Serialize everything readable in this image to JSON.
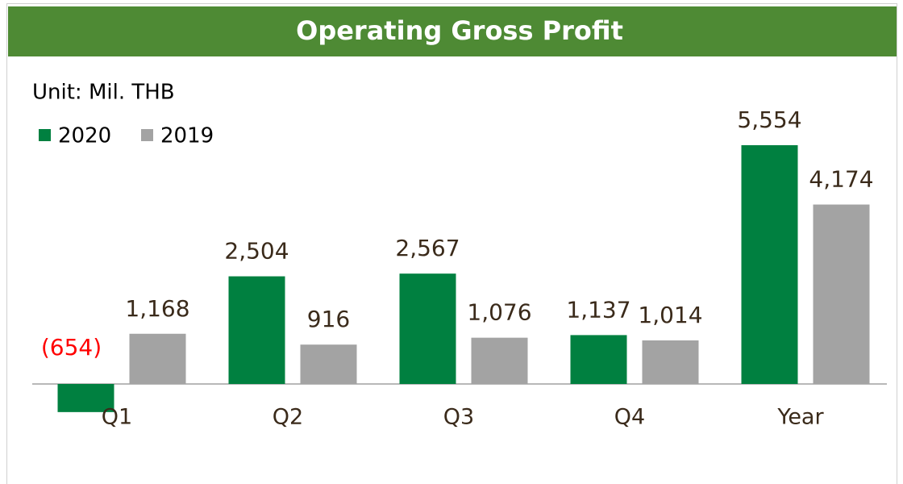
{
  "chart_data": {
    "type": "bar",
    "title": "Operating Gross Profit",
    "subtitle": "Unit: Mil. THB",
    "categories": [
      "Q1",
      "Q2",
      "Q3",
      "Q4",
      "Year"
    ],
    "series": [
      {
        "name": "2020",
        "color": "#008040",
        "values": [
          -654,
          2504,
          2567,
          1137,
          5554
        ],
        "value_labels": [
          "(654)",
          "2,504",
          "2,567",
          "1,137",
          "5,554"
        ]
      },
      {
        "name": "2019",
        "color": "#a3a3a3",
        "values": [
          1168,
          916,
          1076,
          1014,
          4174
        ],
        "value_labels": [
          "1,168",
          "916",
          "1,076",
          "1,014",
          "4,174"
        ]
      }
    ],
    "negative_label_color": "#ff0000"
  }
}
